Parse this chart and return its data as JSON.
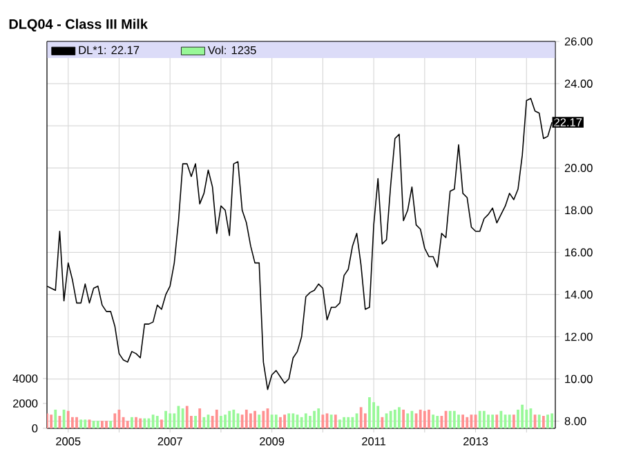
{
  "chart_data": {
    "type": "line",
    "title": "DLQ04 - Class III Milk",
    "x": [
      "2004-08",
      "2004-09",
      "2004-10",
      "2004-11",
      "2004-12",
      "2005-01",
      "2005-02",
      "2005-03",
      "2005-04",
      "2005-05",
      "2005-06",
      "2005-07",
      "2005-08",
      "2005-09",
      "2005-10",
      "2005-11",
      "2005-12",
      "2006-01",
      "2006-02",
      "2006-03",
      "2006-04",
      "2006-05",
      "2006-06",
      "2006-07",
      "2006-08",
      "2006-09",
      "2006-10",
      "2006-11",
      "2006-12",
      "2007-01",
      "2007-02",
      "2007-03",
      "2007-04",
      "2007-05",
      "2007-06",
      "2007-07",
      "2007-08",
      "2007-09",
      "2007-10",
      "2007-11",
      "2007-12",
      "2008-01",
      "2008-02",
      "2008-03",
      "2008-04",
      "2008-05",
      "2008-06",
      "2008-07",
      "2008-08",
      "2008-09",
      "2008-10",
      "2008-11",
      "2008-12",
      "2009-01",
      "2009-02",
      "2009-03",
      "2009-04",
      "2009-05",
      "2009-06",
      "2009-07",
      "2009-08",
      "2009-09",
      "2009-10",
      "2009-11",
      "2009-12",
      "2010-01",
      "2010-02",
      "2010-03",
      "2010-04",
      "2010-05",
      "2010-06",
      "2010-07",
      "2010-08",
      "2010-09",
      "2010-10",
      "2010-11",
      "2010-12",
      "2011-01",
      "2011-02",
      "2011-03",
      "2011-04",
      "2011-05",
      "2011-06",
      "2011-07",
      "2011-08",
      "2011-09",
      "2011-10",
      "2011-11",
      "2011-12",
      "2012-01",
      "2012-02",
      "2012-03",
      "2012-04",
      "2012-05",
      "2012-06",
      "2012-07",
      "2012-08",
      "2012-09",
      "2012-10",
      "2012-11",
      "2012-12",
      "2013-01",
      "2013-02",
      "2013-03",
      "2013-04",
      "2013-05",
      "2013-06",
      "2013-07",
      "2013-08",
      "2013-09",
      "2013-10",
      "2013-11",
      "2013-12",
      "2014-01",
      "2014-02",
      "2014-03",
      "2014-04",
      "2014-05",
      "2014-06",
      "2014-07"
    ],
    "series": [
      {
        "name": "DL*1: 22.17",
        "color": "#000000",
        "values": [
          14.4,
          14.3,
          14.2,
          17.0,
          13.7,
          15.5,
          14.7,
          13.6,
          13.6,
          14.5,
          13.6,
          14.3,
          14.4,
          13.5,
          13.2,
          13.2,
          12.5,
          11.2,
          10.9,
          10.8,
          11.3,
          11.2,
          11.0,
          12.6,
          12.6,
          12.7,
          13.5,
          13.3,
          14.0,
          14.4,
          15.5,
          17.5,
          20.2,
          20.2,
          19.6,
          20.2,
          18.3,
          18.8,
          19.9,
          19.1,
          16.9,
          18.2,
          18.0,
          16.8,
          20.2,
          20.3,
          18.0,
          17.4,
          16.3,
          15.5,
          15.5,
          10.8,
          9.5,
          10.2,
          10.4,
          10.1,
          9.8,
          10.0,
          11.0,
          11.3,
          12.0,
          13.9,
          14.1,
          14.2,
          14.5,
          14.3,
          12.8,
          13.4,
          13.4,
          13.6,
          14.9,
          15.2,
          16.3,
          16.9,
          15.4,
          13.3,
          13.4,
          17.3,
          19.5,
          16.4,
          16.6,
          19.2,
          21.4,
          21.6,
          17.5,
          18.0,
          19.1,
          17.3,
          17.1,
          16.2,
          15.8,
          15.8,
          15.3,
          16.9,
          16.7,
          18.9,
          19.0,
          21.1,
          18.8,
          18.6,
          17.2,
          17.0,
          17.0,
          17.6,
          17.8,
          18.1,
          17.4,
          17.8,
          18.2,
          18.8,
          18.5,
          19.0,
          20.6,
          23.2,
          23.3,
          22.7,
          22.6,
          21.4,
          21.5,
          22.17
        ]
      },
      {
        "name": "Vol: 1235",
        "type": "bar",
        "axis": "y2",
        "color": "#98f898",
        "values": [
          1200,
          1100,
          1500,
          1000,
          1500,
          1400,
          900,
          900,
          700,
          700,
          700,
          600,
          600,
          600,
          600,
          600,
          1200,
          1500,
          900,
          600,
          900,
          900,
          800,
          800,
          800,
          1100,
          1000,
          700,
          1400,
          1200,
          1200,
          1800,
          1600,
          1800,
          1000,
          1000,
          1600,
          900,
          1100,
          1000,
          1500,
          1000,
          1100,
          1400,
          1500,
          1200,
          1100,
          1500,
          1200,
          1400,
          1100,
          1400,
          1600,
          1100,
          1100,
          900,
          1100,
          1200,
          1200,
          1100,
          900,
          1200,
          1000,
          1400,
          1600,
          1100,
          1200,
          1100,
          1100,
          700,
          900,
          900,
          900,
          1200,
          1700,
          1200,
          2500,
          2100,
          1800,
          900,
          1200,
          1400,
          1500,
          1700,
          1500,
          1200,
          1400,
          1200,
          1500,
          1400,
          1500,
          1100,
          1000,
          1000,
          1400,
          1400,
          1400,
          1100,
          1100,
          900,
          1100,
          1100,
          1400,
          1400,
          1100,
          1100,
          1100,
          1400,
          1100,
          1100,
          1100,
          1500,
          1900,
          1500,
          1600,
          1100,
          1100,
          1000,
          1100,
          1200
        ],
        "colors": [
          "#ff9090",
          "#ff9090",
          "#98f898",
          "#ff9090",
          "#98f898",
          "#ff9090",
          "#ff9090",
          "#ff9090",
          "#98f898",
          "#98f898",
          "#ff9090",
          "#98f898",
          "#98f898",
          "#ff9090",
          "#ff9090",
          "#98f898",
          "#ff9090",
          "#ff9090",
          "#ff9090",
          "#ff9090",
          "#98f898",
          "#ff9090",
          "#ff9090",
          "#98f898",
          "#98f898",
          "#98f898",
          "#98f898",
          "#ff9090",
          "#98f898",
          "#98f898",
          "#98f898",
          "#98f898",
          "#98f898",
          "#ff9090",
          "#ff9090",
          "#98f898",
          "#ff9090",
          "#98f898",
          "#98f898",
          "#ff9090",
          "#ff9090",
          "#98f898",
          "#98f898",
          "#98f898",
          "#98f898",
          "#98f898",
          "#ff9090",
          "#ff9090",
          "#ff9090",
          "#ff9090",
          "#98f898",
          "#ff9090",
          "#ff9090",
          "#98f898",
          "#98f898",
          "#ff9090",
          "#ff9090",
          "#98f898",
          "#98f898",
          "#98f898",
          "#98f898",
          "#98f898",
          "#98f898",
          "#98f898",
          "#98f898",
          "#ff9090",
          "#ff9090",
          "#98f898",
          "#ff9090",
          "#98f898",
          "#98f898",
          "#98f898",
          "#98f898",
          "#98f898",
          "#ff9090",
          "#ff9090",
          "#98f898",
          "#98f898",
          "#98f898",
          "#ff9090",
          "#98f898",
          "#98f898",
          "#98f898",
          "#98f898",
          "#ff9090",
          "#98f898",
          "#98f898",
          "#ff9090",
          "#ff9090",
          "#ff9090",
          "#ff9090",
          "#98f898",
          "#98f898",
          "#ff9090",
          "#ff9090",
          "#98f898",
          "#98f898",
          "#98f898",
          "#ff9090",
          "#ff9090",
          "#ff9090",
          "#ff9090",
          "#98f898",
          "#98f898",
          "#98f898",
          "#98f898",
          "#ff9090",
          "#98f898",
          "#98f898",
          "#98f898",
          "#ff9090",
          "#98f898",
          "#98f898",
          "#98f898",
          "#98f898",
          "#ff9090",
          "#98f898",
          "#ff9090",
          "#98f898",
          "#98f898"
        ]
      }
    ],
    "xlim": [
      "2004-08-01",
      "2014-07-25"
    ],
    "xticks": [
      {
        "value": "2005",
        "label": "2005"
      },
      {
        "value": "2006",
        "label": null
      },
      {
        "value": "2007",
        "label": "2007"
      },
      {
        "value": "2008",
        "label": null
      },
      {
        "value": "2009",
        "label": "2009"
      },
      {
        "value": "2010",
        "label": null
      },
      {
        "value": "2011",
        "label": "2011"
      },
      {
        "value": "2012",
        "label": null
      },
      {
        "value": "2013",
        "label": "2013"
      },
      {
        "value": "2014",
        "label": null
      }
    ],
    "ylim": [
      7.66,
      26
    ],
    "yticks": [
      {
        "value": 8,
        "label": "8.00"
      },
      {
        "value": 10,
        "label": "10.00"
      },
      {
        "value": 12,
        "label": "12.00"
      },
      {
        "value": 14,
        "label": "14.00"
      },
      {
        "value": 16,
        "label": "16.00"
      },
      {
        "value": 18,
        "label": "18.00"
      },
      {
        "value": 20,
        "label": "20.00"
      },
      {
        "value": 22,
        "label": null
      },
      {
        "value": 24,
        "label": "24.00"
      },
      {
        "value": 26,
        "label": "26.00"
      }
    ],
    "y2lim": [
      0,
      31100
    ],
    "y2ticks": [
      0,
      2000,
      4000
    ],
    "annotations": [
      {
        "text": "22.17",
        "x": "2014-07",
        "y": 22.17
      }
    ],
    "grid": true,
    "legend": "top left"
  }
}
